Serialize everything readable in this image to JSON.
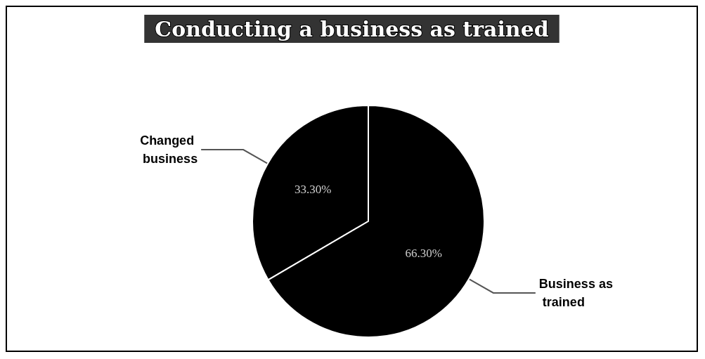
{
  "chart_data": {
    "type": "pie",
    "title": "Conducting a business as trained",
    "categories": [
      "Changed business",
      "Business as trained"
    ],
    "values": [
      33.3,
      66.3
    ],
    "colors": [
      "#000000",
      "#000000"
    ],
    "value_labels": [
      "33.30%",
      "66.30%"
    ],
    "legend": false
  }
}
